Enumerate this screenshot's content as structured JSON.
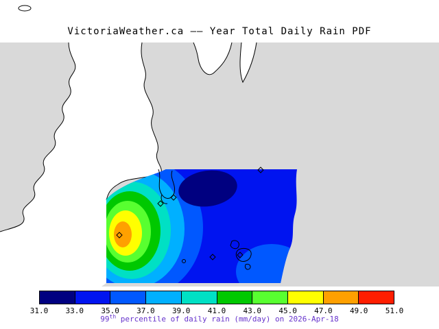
{
  "title": "VictoriaWeather.ca –– Year Total Daily Rain PDF",
  "map": {
    "land_color": "#d9d9d9",
    "water_color": "#ffffff",
    "coastline_color": "#000000"
  },
  "colorbar": {
    "tick_labels": [
      "31.0",
      "33.0",
      "35.0",
      "37.0",
      "39.0",
      "41.0",
      "43.0",
      "45.0",
      "47.0",
      "49.0",
      "51.0"
    ],
    "segment_colors": [
      "#000080",
      "#0014f0",
      "#0058ff",
      "#00b0ff",
      "#00e0c4",
      "#00c800",
      "#58ff30",
      "#ffff00",
      "#ffa000",
      "#ff1e00"
    ]
  },
  "caption": {
    "value": "99",
    "superscript": "th",
    "rest": " percentile of daily rain (mm/day) on 2026-Apr-18",
    "color": "#6633cc"
  },
  "chart_data": {
    "type": "filled-contour-map",
    "statistic": "99th percentile of daily rain",
    "units": "mm/day",
    "date": "2026-Apr-18",
    "levels": [
      31.0,
      33.0,
      35.0,
      37.0,
      39.0,
      41.0,
      43.0,
      45.0,
      47.0,
      49.0,
      51.0
    ],
    "palette": [
      "#000080",
      "#0014f0",
      "#0058ff",
      "#00b0ff",
      "#00e0c4",
      "#00c800",
      "#58ff30",
      "#ffff00",
      "#ffa000",
      "#ff1e00"
    ],
    "field_summary": {
      "minimum": {
        "approx_value_range": [
          31,
          33
        ],
        "location_note": "dark navy pocket near the top-centre of the shaded domain"
      },
      "maximum": {
        "approx_value_range": [
          47,
          49
        ],
        "location_note": "orange bullseye at the west edge of the shaded domain"
      }
    }
  }
}
